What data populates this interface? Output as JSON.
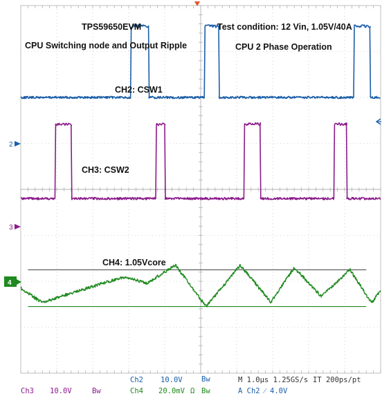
{
  "colors": {
    "ch2": "#1a5ea8",
    "ch3": "#8a1a8a",
    "ch4": "#1f8a1f",
    "grid": "#b0b0b0",
    "trigger": "#e8542c"
  },
  "annotations": {
    "title": "TPS59650EVM",
    "subtitle": "CPU Switching node and Output Ripple",
    "test_condition": "Test condition: 12 Vin, 1.05V/40A",
    "phase": "CPU 2 Phase Operation",
    "ch2_label": "CH2: CSW1",
    "ch3_label": "CH3: CSW2",
    "ch4_label": "CH4: 1.05Vcore"
  },
  "markers": {
    "ch2": "2",
    "ch3": "3",
    "ch4": "4"
  },
  "readout": {
    "ch2_name": "Ch2",
    "ch2_scale": "10.0V",
    "ch2_bw": "Bw",
    "ch3_name": "Ch3",
    "ch3_scale": "10.0V",
    "ch3_bw": "Bw",
    "ch4_name": "Ch4",
    "ch4_scale": "20.0mV",
    "ch4_coupling": "Ω",
    "ch4_bw": "Bw",
    "timebase": "M 1.0µs 1.25GS/s",
    "interp": "IT 200ps/pt",
    "trigger": "A  Ch2  ⁄  4.0V"
  },
  "chart_data": {
    "type": "line",
    "title": "",
    "xlabel": "",
    "ylabel": "",
    "time_per_div_us": 1.0,
    "x_range_us": [
      0,
      10
    ],
    "y_divisions": 8,
    "grid": true,
    "series": [
      {
        "name": "CH2: CSW1",
        "scale_per_div": "10.0V",
        "baseline_div": 6.0,
        "high_div": 7.55,
        "pulses_us": [
          [
            3.05,
            3.55
          ],
          [
            9.25,
            9.7
          ]
        ],
        "edge_pulses_us": [
          [
            5.1,
            5.5
          ]
        ]
      },
      {
        "name": "CH3: CSW2",
        "scale_per_div": "10.0V",
        "baseline_div": 3.8,
        "high_div": 5.42,
        "pulses_us": [
          [
            0.95,
            1.4
          ],
          [
            6.2,
            6.65
          ]
        ],
        "edge_pulses_us": [
          [
            3.75,
            4.0
          ],
          [
            8.7,
            9.05
          ]
        ]
      },
      {
        "name": "CH4: 1.05Vcore",
        "scale_per_div": "20.0mV",
        "offset_div": 1.8,
        "ripple": {
          "x_us": [
            0.0,
            0.6,
            1.3,
            2.9,
            3.5,
            4.3,
            5.15,
            6.1,
            6.95,
            7.6,
            8.35,
            9.15,
            9.75,
            10.0
          ],
          "y_div": [
            1.85,
            1.53,
            1.72,
            2.1,
            1.95,
            2.35,
            1.45,
            2.35,
            1.55,
            2.3,
            1.67,
            2.25,
            1.53,
            1.8
          ]
        },
        "cursor_upper_div": 2.25,
        "cursor_lower_div": 1.45
      }
    ]
  }
}
